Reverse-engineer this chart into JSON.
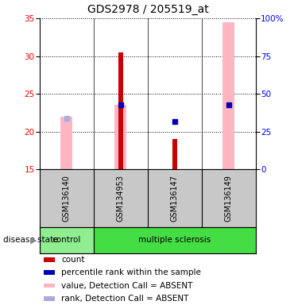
{
  "title": "GDS2978 / 205519_at",
  "samples": [
    "GSM136140",
    "GSM134953",
    "GSM136147",
    "GSM136149"
  ],
  "ylim_left": [
    15,
    35
  ],
  "ylim_right": [
    0,
    100
  ],
  "yticks_left": [
    15,
    20,
    25,
    30,
    35
  ],
  "yticks_right": [
    0,
    25,
    50,
    75,
    100
  ],
  "ytick_labels_right": [
    "0",
    "25",
    "50",
    "75",
    "100%"
  ],
  "bars_red": [
    null,
    30.5,
    19.0,
    null
  ],
  "bars_pink": [
    22.0,
    23.5,
    null,
    34.5
  ],
  "dots_blue": [
    null,
    23.5,
    21.3,
    23.5
  ],
  "dots_lightblue": [
    21.7,
    null,
    null,
    null
  ],
  "control_color": "#90EE90",
  "ms_color": "#44DD44",
  "sample_bg_color": "#C8C8C8",
  "red_bar_color": "#CC0000",
  "pink_bar_color": "#FFB6C1",
  "blue_dot_color": "#0000BB",
  "lightblue_dot_color": "#AAAADD",
  "title_fontsize": 10,
  "tick_fontsize": 7.5,
  "label_fontsize": 7.5
}
